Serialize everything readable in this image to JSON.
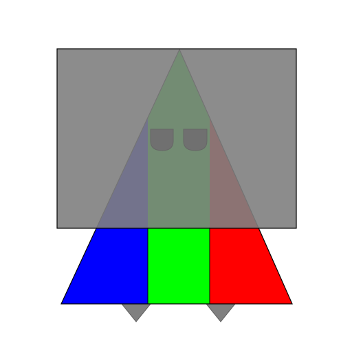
{
  "scene": {
    "background": "#ffffff",
    "colors": {
      "blue": "#0000ff",
      "green": "#00ff00",
      "red": "#ff0000",
      "gray": "#808080",
      "outline": "#000000",
      "eye": "#707070"
    },
    "overlay_opacity": 0.9,
    "icons": [
      "triangle-shape",
      "overlay-rectangle",
      "eye-icon",
      "foot-icon"
    ]
  }
}
